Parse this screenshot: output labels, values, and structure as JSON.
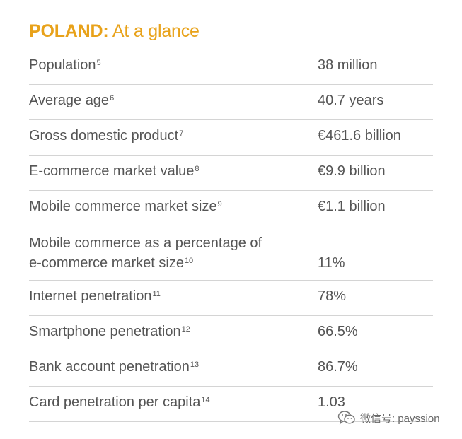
{
  "header": {
    "country": "POLAND:",
    "subtitle": "At a glance"
  },
  "rows": [
    {
      "label": "Population",
      "note": "5",
      "value": "38 million"
    },
    {
      "label": "Average age",
      "note": "6",
      "value": "40.7 years"
    },
    {
      "label": "Gross domestic product",
      "note": "7",
      "value": "€461.6 billion"
    },
    {
      "label": "E-commerce market value",
      "note": "8",
      "value": "€9.9 billion"
    },
    {
      "label": "Mobile commerce market size",
      "note": "9",
      "value": "€1.1 billion"
    },
    {
      "label": "Mobile commerce as a percentage of e-commerce market size",
      "note": "10",
      "value": "11%"
    },
    {
      "label": "Internet penetration",
      "note": "11",
      "value": "78%"
    },
    {
      "label": "Smartphone penetration",
      "note": "12",
      "value": "66.5%"
    },
    {
      "label": "Bank account penetration",
      "note": "13",
      "value": "86.7%"
    },
    {
      "label": "Card penetration per capita",
      "note": "14",
      "value": "1.03"
    }
  ],
  "watermark": {
    "text": "微信号: payssion",
    "icon": "wechat-icon"
  },
  "colors": {
    "accent": "#e8a21a",
    "text": "#555555",
    "divider": "#d4d4d4"
  }
}
